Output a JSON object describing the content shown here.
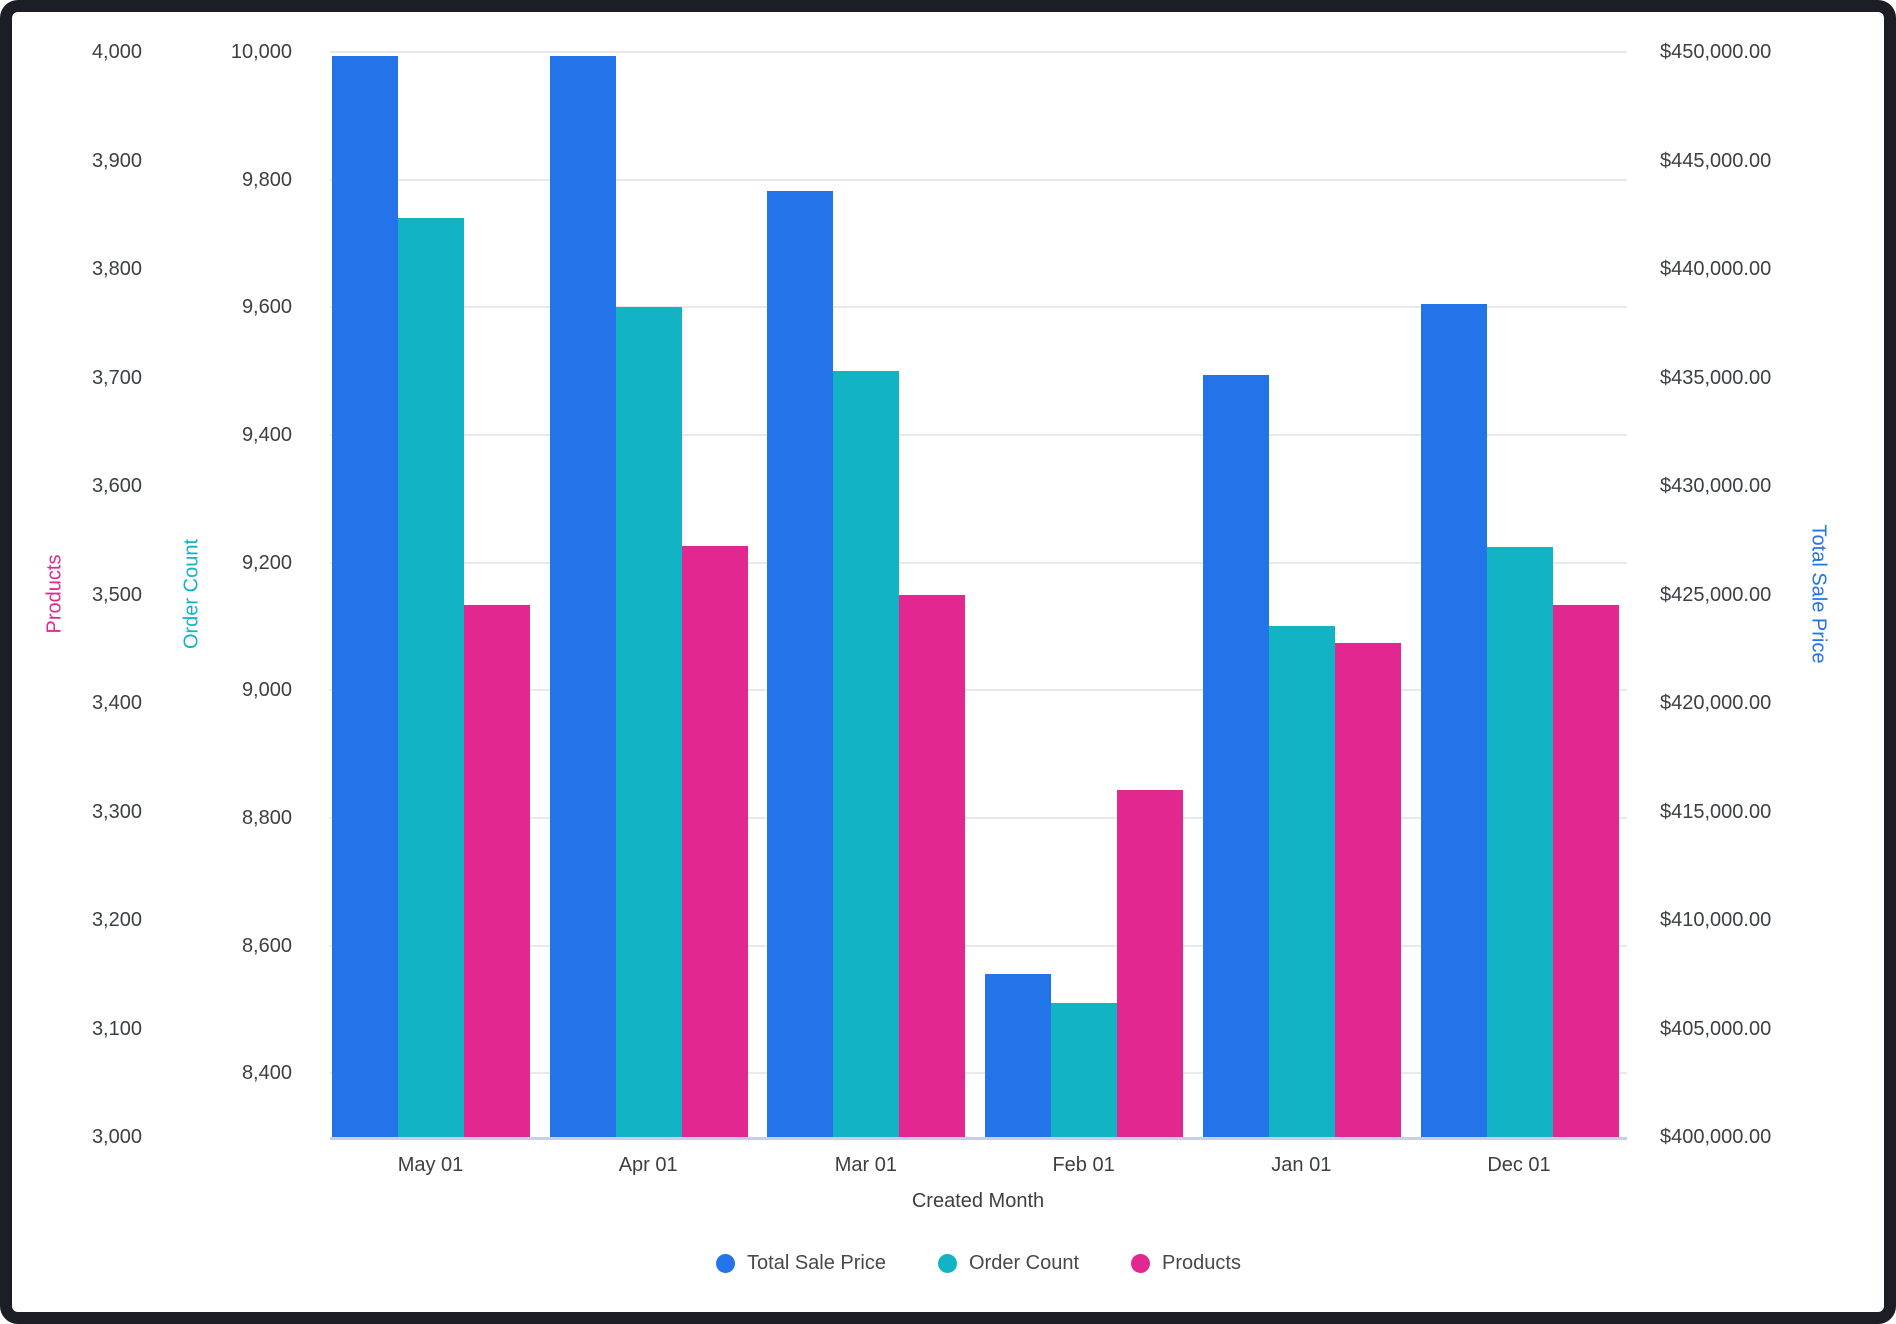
{
  "chart_data": {
    "type": "bar",
    "xlabel": "Created Month",
    "categories": [
      "May 01",
      "Apr 01",
      "Mar 01",
      "Feb 01",
      "Jan 01",
      "Dec 01"
    ],
    "series": [
      {
        "name": "Total Sale Price",
        "axis": "price",
        "color": "#2274e8",
        "values": [
          449800,
          449800,
          443600,
          407500,
          435100,
          438400
        ]
      },
      {
        "name": "Order Count",
        "axis": "orders",
        "color": "#13b3c6",
        "values": [
          9740,
          9600,
          9500,
          8510,
          9100,
          9225
        ]
      },
      {
        "name": "Products",
        "axis": "products",
        "color": "#e32790",
        "values": [
          3490,
          3545,
          3500,
          3320,
          3455,
          3490
        ]
      }
    ],
    "axes": {
      "products": {
        "title": "Products",
        "color": "#e32790",
        "min": 3000,
        "max": 4000,
        "ticks": [
          {
            "label": "4,000",
            "value": 4000
          },
          {
            "label": "3,900",
            "value": 3900
          },
          {
            "label": "3,800",
            "value": 3800
          },
          {
            "label": "3,700",
            "value": 3700
          },
          {
            "label": "3,600",
            "value": 3600
          },
          {
            "label": "3,500",
            "value": 3500
          },
          {
            "label": "3,400",
            "value": 3400
          },
          {
            "label": "3,300",
            "value": 3300
          },
          {
            "label": "3,200",
            "value": 3200
          },
          {
            "label": "3,100",
            "value": 3100
          },
          {
            "label": "3,000",
            "value": 3000
          }
        ]
      },
      "orders": {
        "title": "Order Count",
        "color": "#13b3c6",
        "min": 8300,
        "max": 10000,
        "ticks": [
          {
            "label": "10,000",
            "value": 10000
          },
          {
            "label": "9,800",
            "value": 9800
          },
          {
            "label": "9,600",
            "value": 9600
          },
          {
            "label": "9,400",
            "value": 9400
          },
          {
            "label": "9,200",
            "value": 9200
          },
          {
            "label": "9,000",
            "value": 9000
          },
          {
            "label": "8,800",
            "value": 8800
          },
          {
            "label": "8,600",
            "value": 8600
          },
          {
            "label": "8,400",
            "value": 8400
          }
        ]
      },
      "price": {
        "title": "Total Sale Price",
        "color": "#2274e8",
        "min": 400000,
        "max": 450000,
        "ticks": [
          {
            "label": "$450,000.00",
            "value": 450000
          },
          {
            "label": "$445,000.00",
            "value": 445000
          },
          {
            "label": "$440,000.00",
            "value": 440000
          },
          {
            "label": "$435,000.00",
            "value": 435000
          },
          {
            "label": "$430,000.00",
            "value": 430000
          },
          {
            "label": "$425,000.00",
            "value": 425000
          },
          {
            "label": "$420,000.00",
            "value": 420000
          },
          {
            "label": "$415,000.00",
            "value": 415000
          },
          {
            "label": "$410,000.00",
            "value": 410000
          },
          {
            "label": "$405,000.00",
            "value": 405000
          },
          {
            "label": "$400,000.00",
            "value": 400000
          }
        ]
      },
      "gridline_axis": "orders"
    },
    "legend": [
      "Total Sale Price",
      "Order Count",
      "Products"
    ],
    "legend_position": "bottom",
    "grid": true
  }
}
